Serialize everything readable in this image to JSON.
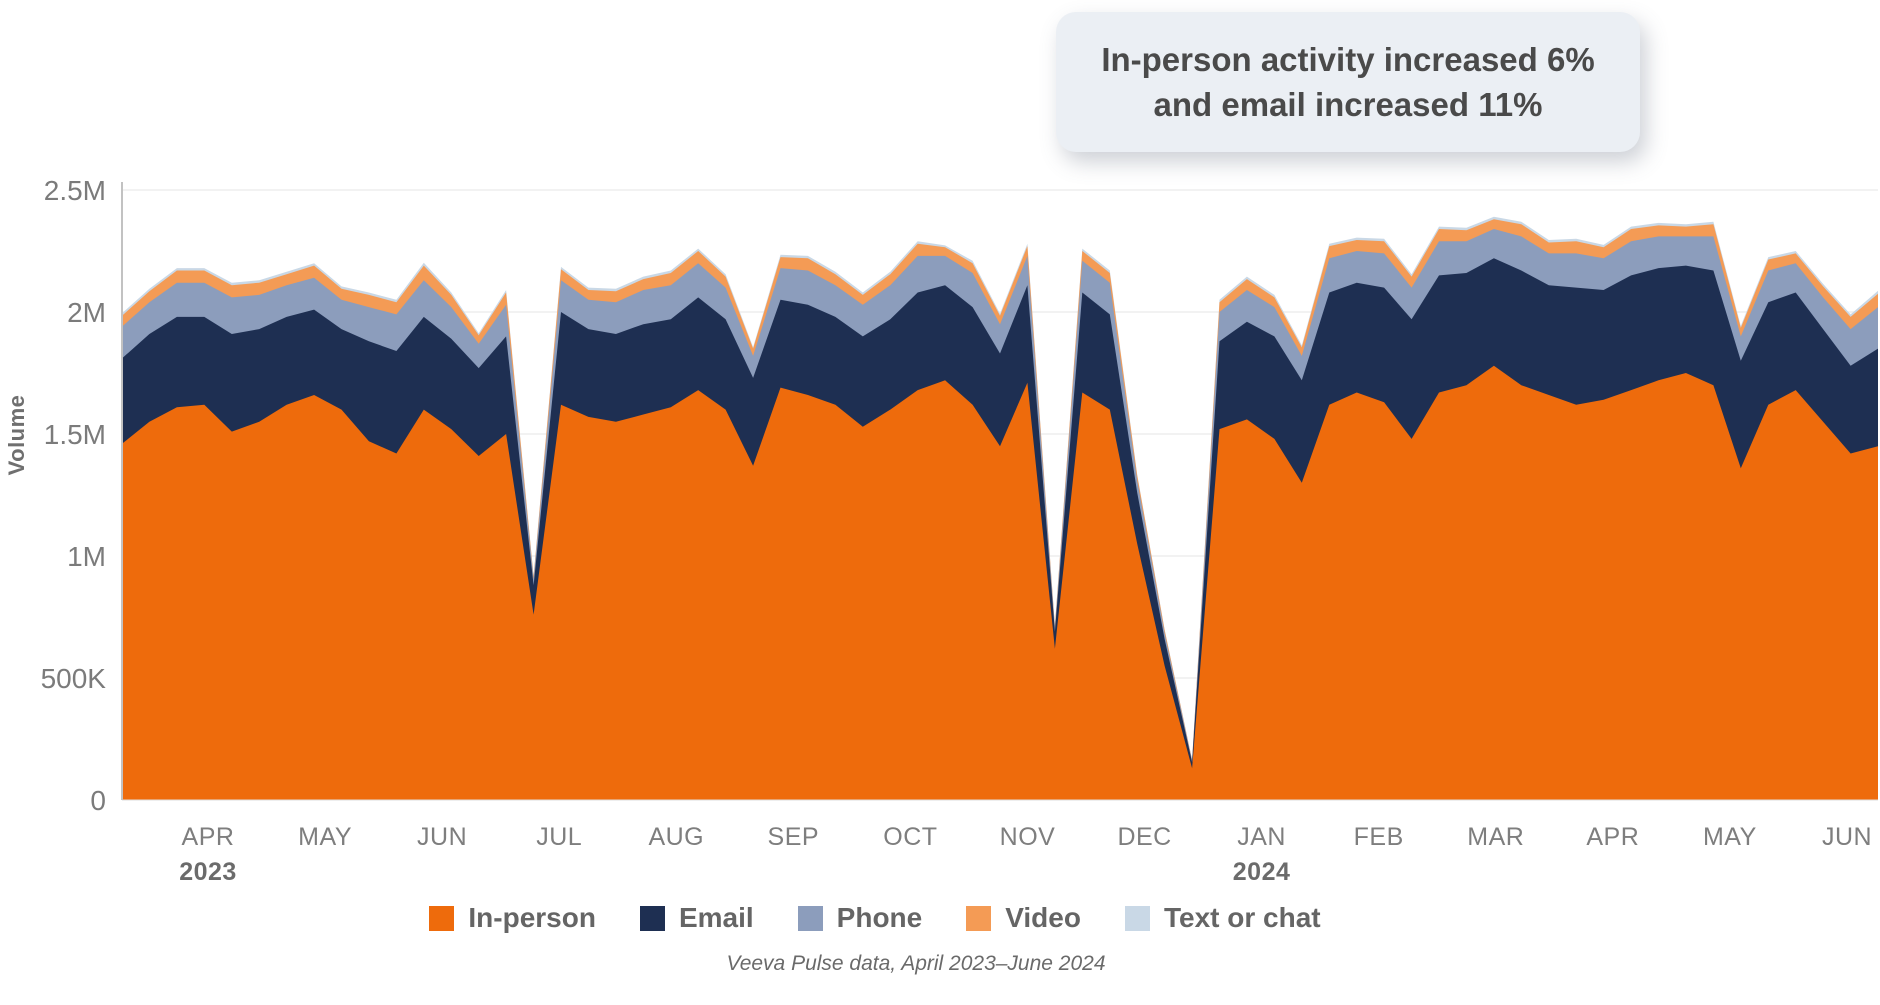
{
  "annotation": {
    "line1": "In-person activity increased 6%",
    "line2": "and email increased 11%"
  },
  "chart_data": {
    "type": "area",
    "stacked": true,
    "units": "volume in millions",
    "ylabel": "Volume",
    "ylim_m": [
      0,
      2.5
    ],
    "grid": true,
    "legend_position": "bottom",
    "yticks": [
      {
        "value": 0,
        "label": "0"
      },
      {
        "value": 0.5,
        "label": "500K"
      },
      {
        "value": 1,
        "label": "1M"
      },
      {
        "value": 1.5,
        "label": "1.5M"
      },
      {
        "value": 2,
        "label": "2M"
      },
      {
        "value": 2.5,
        "label": "2.5M"
      }
    ],
    "months": [
      {
        "label": "APR",
        "year": "2023"
      },
      {
        "label": "MAY",
        "year": ""
      },
      {
        "label": "JUN",
        "year": ""
      },
      {
        "label": "JUL",
        "year": ""
      },
      {
        "label": "AUG",
        "year": ""
      },
      {
        "label": "SEP",
        "year": ""
      },
      {
        "label": "OCT",
        "year": ""
      },
      {
        "label": "NOV",
        "year": ""
      },
      {
        "label": "DEC",
        "year": ""
      },
      {
        "label": "JAN",
        "year": "2024"
      },
      {
        "label": "FEB",
        "year": ""
      },
      {
        "label": "MAR",
        "year": ""
      },
      {
        "label": "APR",
        "year": ""
      },
      {
        "label": "MAY",
        "year": ""
      },
      {
        "label": "JUN",
        "year": ""
      }
    ],
    "frequency": "weekly",
    "series": [
      {
        "name": "In-person",
        "color": "#EE6B0C",
        "values": [
          1.46,
          1.55,
          1.61,
          1.62,
          1.51,
          1.55,
          1.62,
          1.66,
          1.6,
          1.47,
          1.42,
          1.6,
          1.52,
          1.41,
          1.5,
          0.76,
          1.62,
          1.57,
          1.55,
          1.58,
          1.61,
          1.68,
          1.6,
          1.37,
          1.69,
          1.66,
          1.62,
          1.53,
          1.6,
          1.68,
          1.72,
          1.62,
          1.45,
          1.71,
          0.62,
          1.67,
          1.6,
          1.05,
          0.55,
          0.13,
          1.52,
          1.56,
          1.48,
          1.3,
          1.62,
          1.67,
          1.63,
          1.48,
          1.67,
          1.7,
          1.78,
          1.7,
          1.66,
          1.62,
          1.64,
          1.68,
          1.72,
          1.75,
          1.7,
          1.36,
          1.62,
          1.68,
          1.55,
          1.42,
          1.45
        ]
      },
      {
        "name": "Email",
        "color": "#1E2F52",
        "values": [
          0.35,
          0.36,
          0.37,
          0.36,
          0.4,
          0.38,
          0.36,
          0.35,
          0.33,
          0.41,
          0.42,
          0.38,
          0.37,
          0.36,
          0.4,
          0.12,
          0.38,
          0.36,
          0.36,
          0.37,
          0.36,
          0.38,
          0.37,
          0.36,
          0.36,
          0.37,
          0.36,
          0.37,
          0.37,
          0.4,
          0.39,
          0.4,
          0.38,
          0.4,
          0.07,
          0.41,
          0.39,
          0.21,
          0.11,
          0.025,
          0.36,
          0.4,
          0.42,
          0.42,
          0.46,
          0.45,
          0.47,
          0.49,
          0.48,
          0.46,
          0.44,
          0.47,
          0.45,
          0.48,
          0.45,
          0.47,
          0.46,
          0.44,
          0.47,
          0.44,
          0.42,
          0.4,
          0.38,
          0.36,
          0.4
        ]
      },
      {
        "name": "Phone",
        "color": "#8C9DBC",
        "values": [
          0.13,
          0.13,
          0.14,
          0.14,
          0.15,
          0.14,
          0.13,
          0.13,
          0.12,
          0.14,
          0.15,
          0.15,
          0.13,
          0.1,
          0.13,
          0.025,
          0.13,
          0.12,
          0.13,
          0.14,
          0.14,
          0.14,
          0.13,
          0.09,
          0.13,
          0.14,
          0.13,
          0.13,
          0.14,
          0.15,
          0.12,
          0.14,
          0.12,
          0.12,
          0.015,
          0.13,
          0.13,
          0.05,
          0.025,
          0.006,
          0.12,
          0.13,
          0.12,
          0.1,
          0.14,
          0.13,
          0.14,
          0.13,
          0.14,
          0.13,
          0.12,
          0.14,
          0.13,
          0.14,
          0.13,
          0.14,
          0.13,
          0.12,
          0.14,
          0.1,
          0.13,
          0.12,
          0.13,
          0.15,
          0.17
        ]
      },
      {
        "name": "Video",
        "color": "#F49B55",
        "values": [
          0.045,
          0.045,
          0.05,
          0.05,
          0.05,
          0.05,
          0.045,
          0.05,
          0.045,
          0.05,
          0.05,
          0.06,
          0.05,
          0.035,
          0.05,
          0.01,
          0.045,
          0.04,
          0.045,
          0.045,
          0.05,
          0.05,
          0.045,
          0.03,
          0.045,
          0.05,
          0.045,
          0.04,
          0.045,
          0.05,
          0.035,
          0.04,
          0.035,
          0.04,
          0.008,
          0.04,
          0.04,
          0.02,
          0.012,
          0.003,
          0.04,
          0.045,
          0.04,
          0.035,
          0.05,
          0.045,
          0.05,
          0.045,
          0.05,
          0.045,
          0.04,
          0.05,
          0.045,
          0.05,
          0.045,
          0.05,
          0.045,
          0.04,
          0.05,
          0.035,
          0.045,
          0.04,
          0.045,
          0.05,
          0.055
        ]
      },
      {
        "name": "Text or chat",
        "color": "#C9D8E6",
        "values": [
          0.01,
          0.01,
          0.01,
          0.01,
          0.01,
          0.01,
          0.01,
          0.01,
          0.01,
          0.01,
          0.01,
          0.012,
          0.01,
          0.008,
          0.01,
          0.004,
          0.01,
          0.01,
          0.01,
          0.01,
          0.01,
          0.01,
          0.01,
          0.006,
          0.01,
          0.01,
          0.01,
          0.01,
          0.01,
          0.01,
          0.008,
          0.01,
          0.008,
          0.01,
          0.002,
          0.01,
          0.01,
          0.005,
          0.003,
          0.001,
          0.01,
          0.01,
          0.01,
          0.008,
          0.01,
          0.01,
          0.01,
          0.01,
          0.01,
          0.01,
          0.01,
          0.01,
          0.01,
          0.01,
          0.01,
          0.01,
          0.01,
          0.01,
          0.01,
          0.008,
          0.01,
          0.01,
          0.01,
          0.01,
          0.012
        ]
      }
    ]
  },
  "footer": {
    "source_note": "Veeva Pulse data, April 2023–June 2024"
  }
}
